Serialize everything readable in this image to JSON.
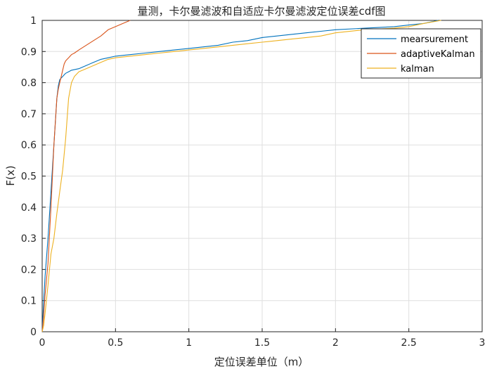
{
  "chart_data": {
    "type": "line",
    "title": "量测，卡尔曼滤波和自适应卡尔曼滤波定位误差cdf图",
    "xlabel": "定位误差单位（m）",
    "ylabel": "F(x)",
    "xlim": [
      0,
      3
    ],
    "ylim": [
      0,
      1
    ],
    "xticks": [
      0,
      0.5,
      1,
      1.5,
      2,
      2.5,
      3
    ],
    "yticks": [
      0,
      0.1,
      0.2,
      0.3,
      0.4,
      0.5,
      0.6,
      0.7,
      0.8,
      0.9,
      1
    ],
    "xtick_labels": [
      "0",
      "0.5",
      "1",
      "1.5",
      "2",
      "2.5",
      "3"
    ],
    "ytick_labels": [
      "0",
      "0.1",
      "0.2",
      "0.3",
      "0.4",
      "0.5",
      "0.6",
      "0.7",
      "0.8",
      "0.9",
      "1"
    ],
    "grid": true,
    "legend_position": "top-right",
    "series": [
      {
        "name": "mearsurement",
        "color": "#0072BD",
        "x": [
          0,
          0.01,
          0.02,
          0.04,
          0.06,
          0.08,
          0.1,
          0.11,
          0.12,
          0.14,
          0.16,
          0.18,
          0.2,
          0.25,
          0.3,
          0.35,
          0.4,
          0.45,
          0.5,
          0.6,
          0.7,
          0.8,
          0.9,
          1.0,
          1.1,
          1.2,
          1.3,
          1.4,
          1.5,
          1.6,
          1.7,
          1.8,
          1.9,
          2.0,
          2.2,
          2.4,
          2.5,
          2.6,
          2.7
        ],
        "y": [
          0,
          0.1,
          0.18,
          0.3,
          0.45,
          0.6,
          0.75,
          0.79,
          0.81,
          0.82,
          0.83,
          0.835,
          0.84,
          0.845,
          0.855,
          0.865,
          0.875,
          0.88,
          0.885,
          0.89,
          0.895,
          0.9,
          0.905,
          0.91,
          0.915,
          0.92,
          0.93,
          0.935,
          0.945,
          0.95,
          0.955,
          0.96,
          0.965,
          0.97,
          0.975,
          0.98,
          0.985,
          0.99,
          1.0
        ]
      },
      {
        "name": "adaptiveKalman",
        "color": "#D95319",
        "x": [
          0,
          0.01,
          0.02,
          0.04,
          0.06,
          0.08,
          0.1,
          0.11,
          0.12,
          0.13,
          0.14,
          0.15,
          0.16,
          0.17,
          0.18,
          0.2,
          0.22,
          0.25,
          0.3,
          0.35,
          0.4,
          0.45,
          0.5,
          0.55,
          0.6
        ],
        "y": [
          0,
          0.05,
          0.12,
          0.22,
          0.4,
          0.6,
          0.75,
          0.78,
          0.8,
          0.82,
          0.84,
          0.86,
          0.87,
          0.875,
          0.88,
          0.89,
          0.895,
          0.905,
          0.92,
          0.935,
          0.95,
          0.97,
          0.98,
          0.99,
          1.0
        ]
      },
      {
        "name": "kalman",
        "color": "#EDB120",
        "x": [
          0,
          0.01,
          0.02,
          0.04,
          0.06,
          0.08,
          0.1,
          0.12,
          0.14,
          0.16,
          0.18,
          0.2,
          0.22,
          0.25,
          0.3,
          0.35,
          0.4,
          0.45,
          0.5,
          0.6,
          0.7,
          0.8,
          0.9,
          1.0,
          1.1,
          1.2,
          1.3,
          1.4,
          1.5,
          1.6,
          1.7,
          1.8,
          1.9,
          2.0,
          2.2,
          2.4,
          2.5,
          2.6,
          2.72
        ],
        "y": [
          0,
          0.02,
          0.06,
          0.15,
          0.25,
          0.3,
          0.38,
          0.45,
          0.52,
          0.62,
          0.75,
          0.8,
          0.82,
          0.835,
          0.845,
          0.855,
          0.865,
          0.875,
          0.88,
          0.885,
          0.89,
          0.895,
          0.9,
          0.905,
          0.91,
          0.915,
          0.92,
          0.925,
          0.93,
          0.935,
          0.94,
          0.945,
          0.95,
          0.96,
          0.97,
          0.975,
          0.98,
          0.99,
          1.0
        ]
      }
    ]
  }
}
